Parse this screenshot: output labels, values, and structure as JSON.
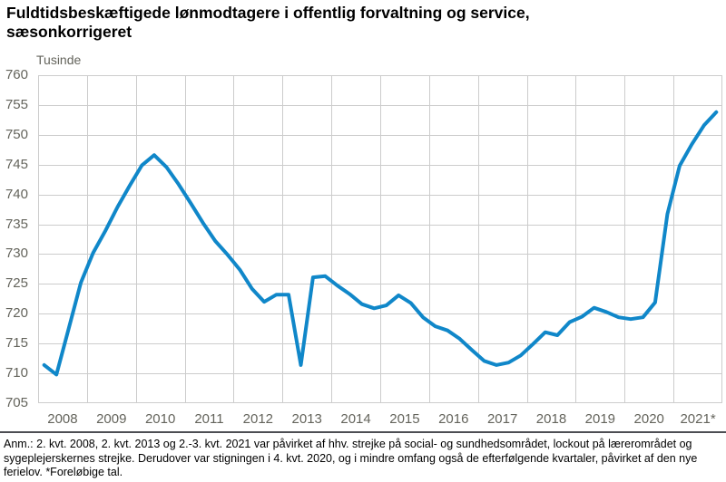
{
  "page": {
    "title": "Fuldtidsbeskæftigede lønmodtagere i offentlig forvaltning og service, sæsonkorrigeret",
    "note": "Anm.: 2. kvt. 2008, 2. kvt. 2013 og 2.-3. kvt. 2021 var påvirket af hhv. strejke på social- og sundhedsområdet, lockout på lærerområdet og sygeplejerskernes strejke. Derudover var stigningen i 4. kvt. 2020, og i mindre omfang også de efterfølgende kvartaler, påvirket af den nye ferielov. *Foreløbige tal."
  },
  "colors": {
    "line": "#1087c9",
    "grid": "#cccccc",
    "axis_text": "#64645c",
    "separator": "#4d4e53"
  },
  "chart_data": {
    "type": "line",
    "title": "Fuldtidsbeskæftigede lønmodtagere i offentlig forvaltning og service, sæsonkorrigeret",
    "unit_label": "Tusinde",
    "ylabel": "Tusinde",
    "ylim": [
      705,
      760
    ],
    "y_ticks": [
      760,
      755,
      750,
      745,
      740,
      735,
      730,
      725,
      720,
      715,
      710,
      705
    ],
    "x_tick_labels": [
      "2008",
      "2009",
      "2010",
      "2011",
      "2012",
      "2013",
      "2014",
      "2015",
      "2016",
      "2017",
      "2018",
      "2019",
      "2020",
      "2021*"
    ],
    "x_start": "2008-Q1",
    "x_end": "2021-Q4",
    "frequency": "quarterly",
    "grid": true,
    "legend_position": "none",
    "series": [
      {
        "name": "Fuldtidsbeskæftigede lønmodtagere, offentlig forvaltning og service (tusinde)",
        "values": [
          711.4,
          709.8,
          717.5,
          725.2,
          730.2,
          733.9,
          737.9,
          741.5,
          744.9,
          746.6,
          744.6,
          741.7,
          738.5,
          735.2,
          732.2,
          729.9,
          727.4,
          724.2,
          722.0,
          723.2,
          723.2,
          711.4,
          726.1,
          726.3,
          724.7,
          723.3,
          721.6,
          720.9,
          721.4,
          723.1,
          721.8,
          719.4,
          717.9,
          717.2,
          715.8,
          713.9,
          712.1,
          711.4,
          711.8,
          713.0,
          714.9,
          716.9,
          716.4,
          718.6,
          719.5,
          721.0,
          720.3,
          719.4,
          719.1,
          719.4,
          721.9,
          736.7,
          744.8,
          748.4,
          751.6,
          753.8
        ]
      }
    ]
  }
}
